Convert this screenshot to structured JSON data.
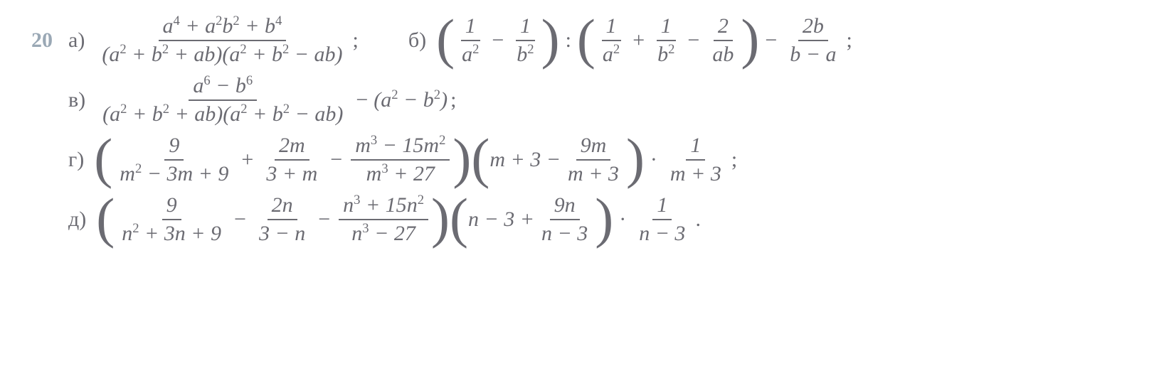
{
  "problem_number": "20",
  "text_color": "#6b6b72",
  "number_color": "#9aa8b5",
  "background": "#ffffff",
  "font_family": "Times New Roman",
  "font_size_pt": 30,
  "items": {
    "a": {
      "label": "а)",
      "frac1_num": "a⁴ + a²b² + b⁴",
      "frac1_den": "(a² + b² + ab)(a² + b² − ab)",
      "terminator": ";"
    },
    "b": {
      "label": "б)",
      "p1_t1_num": "1",
      "p1_t1_den": "a²",
      "p1_op1": "−",
      "p1_t2_num": "1",
      "p1_t2_den": "b²",
      "op_between": ":",
      "p2_t1_num": "1",
      "p2_t1_den": "a²",
      "p2_op1": "+",
      "p2_t2_num": "1",
      "p2_t2_den": "b²",
      "p2_op2": "−",
      "p2_t3_num": "2",
      "p2_t3_den": "ab",
      "op_after": "−",
      "tail_num": "2b",
      "tail_den": "b − a",
      "terminator": ";"
    },
    "v": {
      "label": "в)",
      "frac_num": "a⁶ − b⁶",
      "frac_den": "(a² + b² + ab)(a² + b² − ab)",
      "op": "−",
      "tail": "(a² − b²)",
      "terminator": ";"
    },
    "g": {
      "label": "г)",
      "p1_t1_num": "9",
      "p1_t1_den": "m² − 3m + 9",
      "p1_op1": "+",
      "p1_t2_num": "2m",
      "p1_t2_den": "3 + m",
      "p1_op2": "−",
      "p1_t3_num": "m³ − 15m²",
      "p1_t3_den": "m³ + 27",
      "p2_lead": "m + 3 −",
      "p2_frac_num": "9m",
      "p2_frac_den": "m + 3",
      "op_dot": "·",
      "tail_num": "1",
      "tail_den": "m + 3",
      "terminator": ";"
    },
    "d": {
      "label": "д)",
      "p1_t1_num": "9",
      "p1_t1_den": "n² + 3n + 9",
      "p1_op1": "−",
      "p1_t2_num": "2n",
      "p1_t2_den": "3 − n",
      "p1_op2": "−",
      "p1_t3_num": "n³ + 15n²",
      "p1_t3_den": "n³ − 27",
      "p2_lead": "n − 3 +",
      "p2_frac_num": "9n",
      "p2_frac_den": "n − 3",
      "op_dot": "·",
      "tail_num": "1",
      "tail_den": "n − 3",
      "terminator": "."
    }
  }
}
